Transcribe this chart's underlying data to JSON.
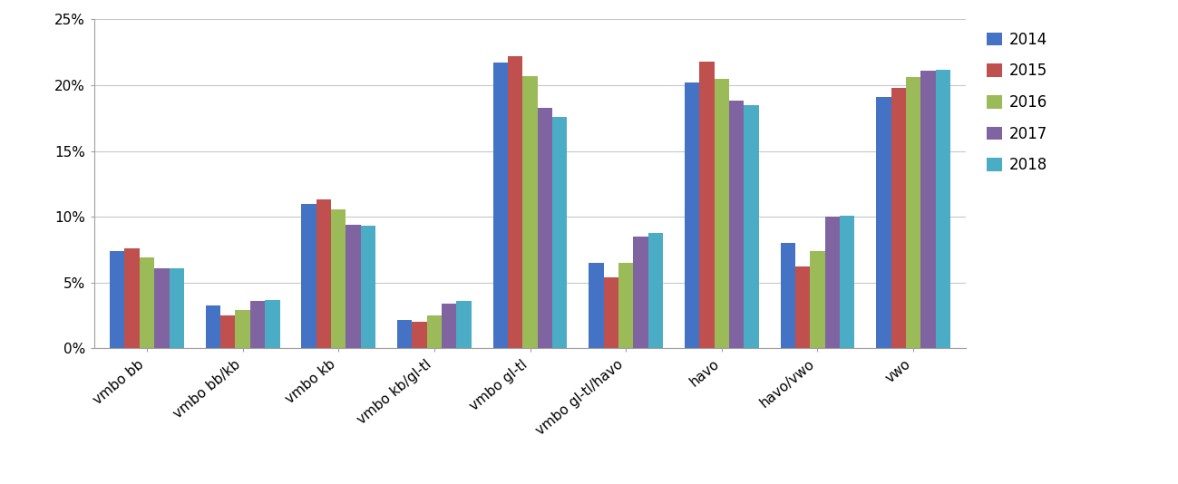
{
  "categories": [
    "vmbo bb",
    "vmbo bb/kb",
    "vmbo kb",
    "vmbo kb/gl-tl",
    "vmbo gl-tl",
    "vmbo gl-tl/havo",
    "havo",
    "havo/vwo",
    "vwo"
  ],
  "years": [
    "2014",
    "2015",
    "2016",
    "2017",
    "2018"
  ],
  "colors": [
    "#4472C4",
    "#C0504D",
    "#9BBB59",
    "#8064A2",
    "#4BACC6"
  ],
  "values": {
    "2014": [
      0.074,
      0.033,
      0.11,
      0.022,
      0.217,
      0.065,
      0.202,
      0.08,
      0.191
    ],
    "2015": [
      0.076,
      0.025,
      0.113,
      0.02,
      0.222,
      0.054,
      0.218,
      0.062,
      0.198
    ],
    "2016": [
      0.069,
      0.029,
      0.106,
      0.025,
      0.207,
      0.065,
      0.205,
      0.074,
      0.206
    ],
    "2017": [
      0.061,
      0.036,
      0.094,
      0.034,
      0.183,
      0.085,
      0.188,
      0.1,
      0.211
    ],
    "2018": [
      0.061,
      0.037,
      0.093,
      0.036,
      0.176,
      0.088,
      0.185,
      0.101,
      0.212
    ]
  },
  "ylim": [
    0,
    0.25
  ],
  "yticks": [
    0.0,
    0.05,
    0.1,
    0.15,
    0.2,
    0.25
  ],
  "ytick_labels": [
    "0%",
    "5%",
    "10%",
    "15%",
    "20%",
    "25%"
  ],
  "background_color": "#FFFFFF",
  "plot_bg_color": "#FFFFFF",
  "grid_color": "#C8C8C8",
  "bar_width": 0.155,
  "legend_fontsize": 12,
  "tick_fontsize": 11,
  "axis_label_fontsize": 11
}
